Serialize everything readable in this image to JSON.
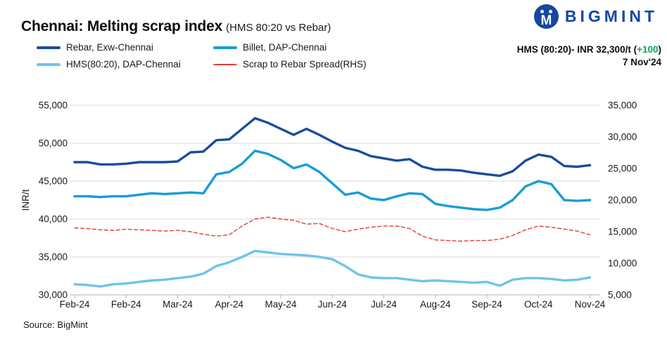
{
  "header": {
    "title": "Chennai: Melting scrap index",
    "subtitle": "(HMS 80:20 vs Rebar)",
    "brand": "BIGMINT",
    "logo_monogram": "M",
    "brand_color": "#17479e"
  },
  "annotation": {
    "text": "HMS (80:20)- INR 32,300/t",
    "open_paren": " (",
    "change": "+100",
    "close_paren": ")",
    "change_color": "#00a859",
    "date": "7 Nov'24"
  },
  "source": "Source: BigMint",
  "chart_data": {
    "type": "line",
    "frequency": "weekly",
    "grid": true,
    "legend_position": "top-left",
    "x_tick_labels": [
      "Feb-24",
      "Feb-24",
      "Mar-24",
      "Apr-24",
      "May-24",
      "Jun-24",
      "Jul-24",
      "Aug-24",
      "Sep-24",
      "Oct-24",
      "Nov-24"
    ],
    "left_axis": {
      "label": "INR/t",
      "min": 30000,
      "max": 55000,
      "step": 5000
    },
    "right_axis": {
      "label": "Spread (RHS)",
      "min": 5000,
      "max": 35000,
      "step": 5000
    },
    "series": [
      {
        "name": "Rebar, Exw-Chennai",
        "axis": "left",
        "color": "#1b4c9e",
        "style": "solid",
        "values": [
          47500,
          47500,
          47200,
          47200,
          47300,
          47500,
          47500,
          47500,
          47600,
          48800,
          48900,
          50400,
          50500,
          51900,
          53300,
          52700,
          51900,
          51100,
          51900,
          51100,
          50200,
          49400,
          49000,
          48300,
          48000,
          47700,
          47900,
          46900,
          46500,
          46500,
          46400,
          46100,
          45900,
          45700,
          46300,
          47700,
          48500,
          48200,
          47000,
          46900,
          47100
        ]
      },
      {
        "name": "Billet, DAP-Chennai",
        "axis": "left",
        "color": "#189cd8",
        "style": "solid",
        "values": [
          43000,
          43000,
          42900,
          43000,
          43000,
          43200,
          43400,
          43300,
          43400,
          43500,
          43400,
          45900,
          46200,
          47300,
          49000,
          48600,
          47800,
          46700,
          47200,
          46200,
          44700,
          43200,
          43500,
          42700,
          42500,
          43000,
          43400,
          43300,
          42000,
          41700,
          41500,
          41300,
          41200,
          41500,
          42500,
          44300,
          45000,
          44600,
          42500,
          42400,
          42500
        ]
      },
      {
        "name": "HMS(80:20), DAP-Chennai",
        "axis": "left",
        "color": "#6ec4e9",
        "style": "solid",
        "values": [
          31400,
          31300,
          31100,
          31400,
          31500,
          31700,
          31900,
          32000,
          32200,
          32400,
          32800,
          33800,
          34300,
          35000,
          35800,
          35600,
          35400,
          35300,
          35200,
          35000,
          34700,
          33800,
          32700,
          32300,
          32200,
          32200,
          32000,
          31800,
          31900,
          31800,
          31700,
          31600,
          31700,
          31200,
          32000,
          32200,
          32200,
          32100,
          31900,
          32000,
          32300
        ]
      },
      {
        "name": "Scrap to Rebar Spread(RHS)",
        "axis": "right",
        "color": "#e03e35",
        "style": "dashed",
        "values": [
          15600,
          15500,
          15300,
          15200,
          15400,
          15300,
          15200,
          15100,
          15200,
          15000,
          14600,
          14300,
          14500,
          15900,
          17000,
          17300,
          17000,
          16800,
          16200,
          16300,
          15500,
          15000,
          15400,
          15700,
          15900,
          15900,
          15500,
          14300,
          13700,
          13600,
          13500,
          13600,
          13600,
          13800,
          14400,
          15300,
          15900,
          15700,
          15400,
          15100,
          14500
        ]
      }
    ]
  }
}
